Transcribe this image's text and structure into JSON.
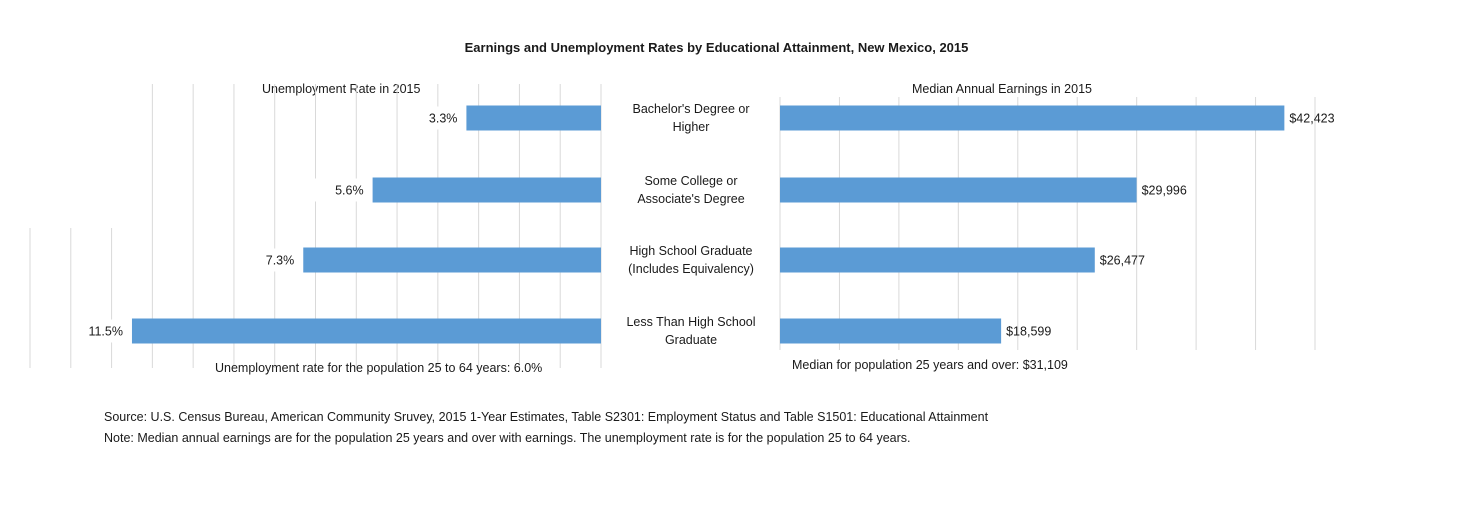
{
  "chart_data": [
    {
      "type": "bar",
      "orientation": "horizontal",
      "title": "Earnings and Unemployment Rates by Educational Attainment, New Mexico, 2015",
      "panel_title": "Unemployment Rate in 2015",
      "categories": [
        "Bachelor's Degree or Higher",
        "Some College or Associate's Degree",
        "High School Graduate (Includes Equivalency)",
        "Less Than High School Graduate"
      ],
      "category_lines": [
        [
          "Bachelor's Degree or",
          "Higher"
        ],
        [
          "Some College or",
          "Associate's Degree"
        ],
        [
          "High School Graduate",
          "(Includes Equivalency)"
        ],
        [
          "Less Than High School",
          "Graduate"
        ]
      ],
      "values": [
        3.3,
        5.6,
        7.3,
        11.5
      ],
      "data_labels": [
        "3.3%",
        "5.6%",
        "7.3%",
        "11.5%"
      ],
      "unit": "%",
      "xlim": [
        0,
        14
      ],
      "grid": true,
      "direction": "right-to-left",
      "note": "Unemployment rate for the population 25 to 64 years:  6.0%"
    },
    {
      "type": "bar",
      "orientation": "horizontal",
      "panel_title": "Median Annual Earnings in 2015",
      "categories": [
        "Bachelor's Degree or Higher",
        "Some College or Associate's Degree",
        "High School Graduate (Includes Equivalency)",
        "Less Than High School Graduate"
      ],
      "values": [
        42423,
        29996,
        26477,
        18599
      ],
      "data_labels": [
        "$42,423",
        "$29,996",
        "$26,477",
        "$18,599"
      ],
      "unit": "$",
      "xlim": [
        0,
        45000
      ],
      "grid": true,
      "note": "Median for population 25 years and over:  $31,109"
    }
  ],
  "colors": {
    "bar": "#5b9bd5",
    "grid": "#d9d9d9",
    "text": "#1a1a1a"
  },
  "footer": {
    "source": "Source:  U.S. Census Bureau, American Community Sruvey, 2015 1-Year Estimates, Table S2301:  Employment Status and Table S1501: Educational Attainment",
    "note": "Note:  Median annual earnings are for the population 25 years and over with earnings.  The unemployment rate is for the population 25 to 64 years."
  }
}
